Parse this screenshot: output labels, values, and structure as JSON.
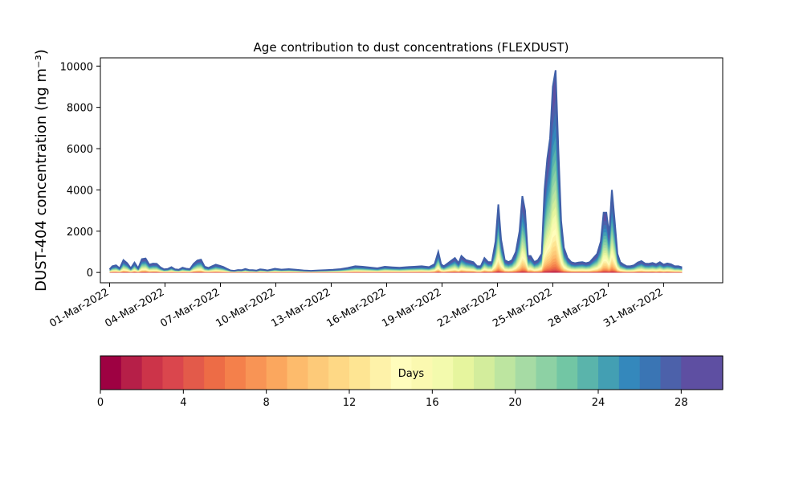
{
  "chart_data": {
    "type": "area",
    "title": "Age contribution to dust concentrations (FLEXDUST)",
    "ylabel": "DUST-404 concentration (ng m⁻³)",
    "xlabel": "",
    "ylim": [
      -500,
      10400
    ],
    "xlim_day": [
      0.5,
      34.2
    ],
    "yticks": [
      0,
      2000,
      4000,
      6000,
      8000,
      10000
    ],
    "xticks": [
      {
        "day": 1,
        "label": "01-Mar-2022"
      },
      {
        "day": 4,
        "label": "04-Mar-2022"
      },
      {
        "day": 7,
        "label": "07-Mar-2022"
      },
      {
        "day": 10,
        "label": "10-Mar-2022"
      },
      {
        "day": 13,
        "label": "13-Mar-2022"
      },
      {
        "day": 16,
        "label": "16-Mar-2022"
      },
      {
        "day": 19,
        "label": "19-Mar-2022"
      },
      {
        "day": 22,
        "label": "22-Mar-2022"
      },
      {
        "day": 25,
        "label": "25-Mar-2022"
      },
      {
        "day": 28,
        "label": "28-Mar-2022"
      },
      {
        "day": 31,
        "label": "31-Mar-2022"
      }
    ],
    "total_series": {
      "day": [
        1.0,
        1.15,
        1.35,
        1.55,
        1.75,
        1.95,
        2.15,
        2.35,
        2.55,
        2.75,
        2.95,
        3.15,
        3.35,
        3.55,
        3.75,
        3.95,
        4.15,
        4.35,
        4.55,
        4.75,
        4.95,
        5.15,
        5.35,
        5.55,
        5.75,
        5.95,
        6.15,
        6.35,
        6.55,
        6.75,
        6.95,
        7.15,
        7.35,
        7.55,
        7.75,
        7.95,
        8.15,
        8.35,
        8.55,
        8.75,
        8.95,
        9.15,
        9.35,
        9.55,
        9.75,
        9.95,
        10.3,
        10.7,
        11.1,
        11.5,
        11.9,
        12.3,
        12.7,
        13.1,
        13.5,
        13.9,
        14.3,
        14.7,
        15.1,
        15.5,
        15.9,
        16.3,
        16.7,
        17.1,
        17.5,
        17.9,
        18.3,
        18.6,
        18.8,
        18.95,
        19.1,
        19.4,
        19.7,
        19.9,
        20.05,
        20.3,
        20.5,
        20.7,
        20.9,
        21.1,
        21.3,
        21.5,
        21.7,
        21.9,
        22.05,
        22.2,
        22.4,
        22.6,
        22.8,
        23.0,
        23.2,
        23.35,
        23.5,
        23.65,
        23.8,
        24.0,
        24.2,
        24.4,
        24.55,
        24.7,
        24.85,
        25.0,
        25.15,
        25.3,
        25.45,
        25.6,
        25.8,
        26.0,
        26.2,
        26.4,
        26.6,
        26.8,
        27.0,
        27.2,
        27.4,
        27.6,
        27.75,
        27.9,
        28.05,
        28.2,
        28.35,
        28.5,
        28.65,
        28.8,
        29.0,
        29.2,
        29.4,
        29.6,
        29.8,
        30.0,
        30.2,
        30.4,
        30.6,
        30.8,
        31.0,
        31.2,
        31.4,
        31.6,
        31.8,
        32.0
      ],
      "value": [
        150,
        300,
        350,
        200,
        600,
        450,
        200,
        480,
        200,
        650,
        680,
        380,
        430,
        420,
        250,
        150,
        170,
        260,
        150,
        130,
        230,
        180,
        160,
        420,
        580,
        620,
        280,
        220,
        300,
        380,
        330,
        270,
        180,
        100,
        80,
        120,
        110,
        170,
        120,
        110,
        90,
        150,
        130,
        100,
        140,
        180,
        140,
        160,
        130,
        100,
        80,
        100,
        110,
        130,
        160,
        220,
        300,
        280,
        240,
        200,
        280,
        250,
        230,
        260,
        280,
        300,
        260,
        400,
        1000,
        400,
        300,
        500,
        700,
        450,
        800,
        600,
        550,
        500,
        300,
        300,
        700,
        500,
        500,
        1500,
        3300,
        1600,
        600,
        500,
        600,
        1000,
        2000,
        3700,
        3000,
        800,
        800,
        500,
        600,
        900,
        4000,
        5500,
        6500,
        9000,
        9800,
        6000,
        2500,
        1200,
        700,
        500,
        450,
        480,
        500,
        450,
        500,
        700,
        900,
        1500,
        2900,
        2900,
        1800,
        4000,
        2500,
        900,
        500,
        400,
        300,
        300,
        350,
        480,
        550,
        430,
        420,
        460,
        400,
        500,
        380,
        440,
        400,
        300,
        300,
        250
      ]
    },
    "colorbar": {
      "label": "Days",
      "range": [
        0,
        30
      ],
      "ticks": [
        0,
        4,
        8,
        12,
        16,
        20,
        24,
        28
      ],
      "colors": [
        "#9e0142",
        "#b61f48",
        "#cc3449",
        "#da464d",
        "#e35a4a",
        "#ed6c46",
        "#f4804b",
        "#f89455",
        "#fba75e",
        "#fdbb6c",
        "#fdca79",
        "#fed885",
        "#fee593",
        "#fef2a9",
        "#fffdbc",
        "#fbf9b0",
        "#f3faad",
        "#e6f59e",
        "#d3ed9c",
        "#bde5a0",
        "#a6dba4",
        "#8dd1a4",
        "#72c6a4",
        "#5ab4ab",
        "#439fb3",
        "#3488bc",
        "#3a75b4",
        "#4c61aa",
        "#5e4fa2",
        "#5e4fa2"
      ]
    }
  }
}
